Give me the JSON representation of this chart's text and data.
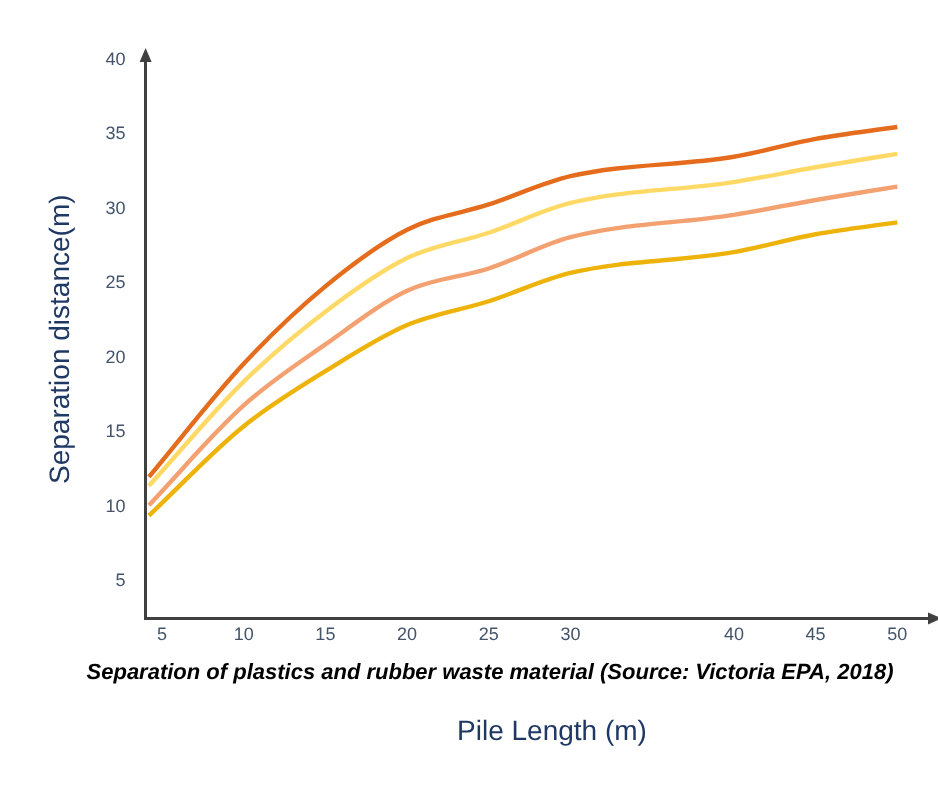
{
  "chart_data": {
    "type": "line",
    "title": "Separation of plastics and rubber waste material (Source: Victoria EPA, 2018)",
    "xlabel": "Pile Length (m)",
    "ylabel": "Separation distance(m)",
    "x": [
      4.2,
      10,
      15,
      20,
      25,
      30,
      40,
      45,
      50
    ],
    "series": [
      {
        "color": "#e46c1c",
        "values": [
          12.0,
          19.6,
          24.8,
          28.6,
          30.3,
          32.2,
          33.5,
          34.7,
          35.5
        ]
      },
      {
        "color": "#ffd966",
        "values": [
          11.4,
          18.4,
          23.1,
          26.7,
          28.4,
          30.4,
          31.8,
          32.8,
          33.7
        ]
      },
      {
        "color": "#f4a172",
        "values": [
          10.1,
          16.8,
          20.9,
          24.5,
          26.0,
          28.1,
          29.6,
          30.6,
          31.5
        ]
      },
      {
        "color": "#eeb30a",
        "values": [
          9.4,
          15.4,
          19.1,
          22.2,
          23.8,
          25.7,
          27.1,
          28.3,
          29.1
        ]
      }
    ],
    "xlim": [
      4,
      52
    ],
    "xticks": [
      5,
      10,
      15,
      20,
      25,
      30,
      40,
      45,
      50
    ],
    "ylim": [
      2.5,
      40
    ],
    "yticks": [
      5,
      10,
      15,
      20,
      25,
      30,
      35,
      40
    ],
    "grid": false,
    "legend": false,
    "marker": "none",
    "line_style": "solid"
  }
}
